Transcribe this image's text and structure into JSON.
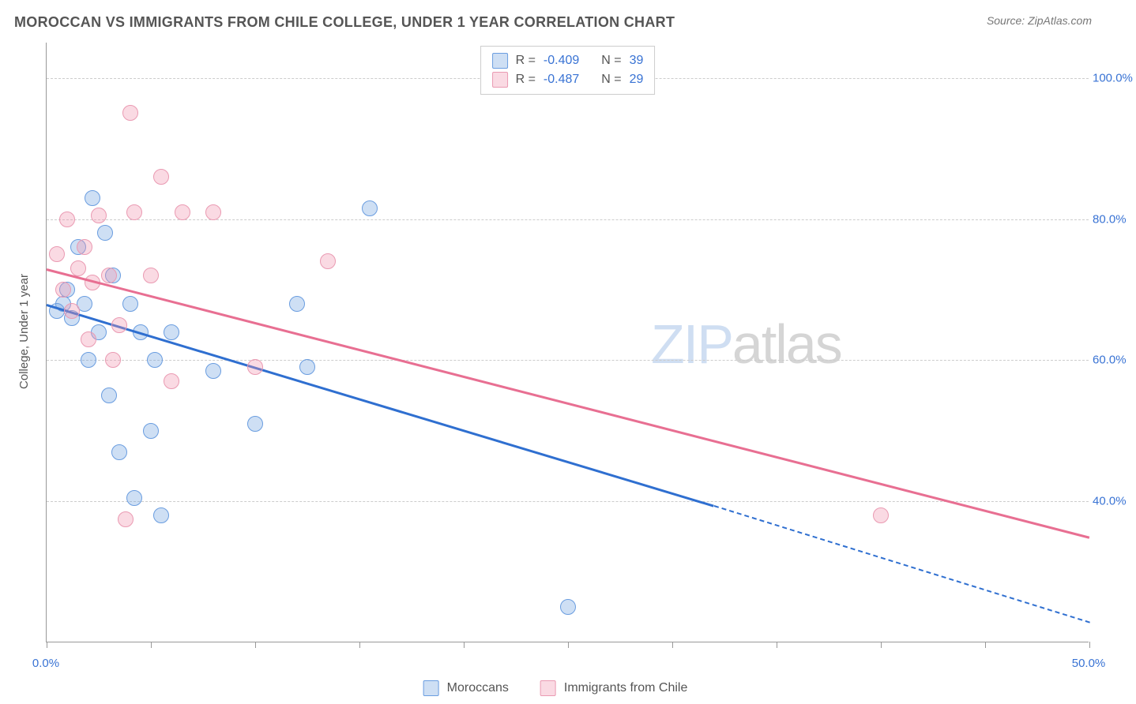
{
  "header": {
    "title": "MOROCCAN VS IMMIGRANTS FROM CHILE COLLEGE, UNDER 1 YEAR CORRELATION CHART",
    "source_prefix": "Source: ",
    "source_name": "ZipAtlas.com"
  },
  "ylabel": "College, Under 1 year",
  "watermark": {
    "part1": "ZIP",
    "part2": "atlas"
  },
  "chart": {
    "type": "scatter",
    "background_color": "#ffffff",
    "grid_color": "#cccccc",
    "axis_color": "#999999",
    "label_color": "#555555",
    "tick_label_color": "#3973d4",
    "xlim": [
      0,
      50
    ],
    "ylim": [
      20,
      105
    ],
    "ytick_values": [
      40,
      60,
      80,
      100
    ],
    "ytick_labels": [
      "40.0%",
      "60.0%",
      "80.0%",
      "100.0%"
    ],
    "xtick_values": [
      0,
      5,
      10,
      15,
      20,
      25,
      30,
      35,
      40,
      45,
      50
    ],
    "xtick_labels": {
      "0": "0.0%",
      "50": "50.0%"
    },
    "point_radius": 10,
    "point_opacity_fill": 0.35,
    "title_fontsize": 18,
    "label_fontsize": 15
  },
  "series": [
    {
      "name": "Moroccans",
      "color_fill": "rgba(115,164,224,0.35)",
      "color_stroke": "#6a9de0",
      "line_color": "#2f6fd0",
      "correlation_R": "-0.409",
      "correlation_N": "39",
      "trendline": {
        "x1": 0,
        "y1": 68,
        "x2": 32,
        "y2": 39.5,
        "dash_x2": 50,
        "dash_y2": 23
      },
      "points": [
        [
          0.5,
          67
        ],
        [
          0.8,
          68
        ],
        [
          1.0,
          70
        ],
        [
          1.2,
          66
        ],
        [
          1.5,
          76
        ],
        [
          1.8,
          68
        ],
        [
          2.0,
          60
        ],
        [
          2.2,
          83
        ],
        [
          2.5,
          64
        ],
        [
          2.8,
          78
        ],
        [
          3.0,
          55
        ],
        [
          3.2,
          72
        ],
        [
          3.5,
          47
        ],
        [
          4.0,
          68
        ],
        [
          4.2,
          40.5
        ],
        [
          4.5,
          64
        ],
        [
          5.0,
          50
        ],
        [
          5.2,
          60
        ],
        [
          5.5,
          38
        ],
        [
          6.0,
          64
        ],
        [
          8.0,
          58.5
        ],
        [
          10.0,
          51
        ],
        [
          12.0,
          68
        ],
        [
          12.5,
          59
        ],
        [
          15.5,
          81.5
        ],
        [
          25.0,
          25
        ]
      ]
    },
    {
      "name": "Immigrants from Chile",
      "color_fill": "rgba(240,150,175,0.35)",
      "color_stroke": "#ea9ab2",
      "line_color": "#e86f92",
      "correlation_R": "-0.487",
      "correlation_N": "29",
      "trendline": {
        "x1": 0,
        "y1": 73,
        "x2": 50,
        "y2": 35
      },
      "points": [
        [
          0.5,
          75
        ],
        [
          0.8,
          70
        ],
        [
          1.0,
          80
        ],
        [
          1.2,
          67
        ],
        [
          1.5,
          73
        ],
        [
          1.8,
          76
        ],
        [
          2.0,
          63
        ],
        [
          2.2,
          71
        ],
        [
          2.5,
          80.5
        ],
        [
          3.0,
          72
        ],
        [
          3.2,
          60
        ],
        [
          3.5,
          65
        ],
        [
          3.8,
          37.5
        ],
        [
          4.0,
          95
        ],
        [
          4.2,
          81
        ],
        [
          5.0,
          72
        ],
        [
          5.5,
          86
        ],
        [
          6.0,
          57
        ],
        [
          6.5,
          81
        ],
        [
          8.0,
          81
        ],
        [
          10.0,
          59
        ],
        [
          13.5,
          74
        ],
        [
          40.0,
          38
        ]
      ]
    }
  ],
  "legend_top": {
    "r_label": "R =",
    "n_label": "N ="
  },
  "legend_bottom": {}
}
